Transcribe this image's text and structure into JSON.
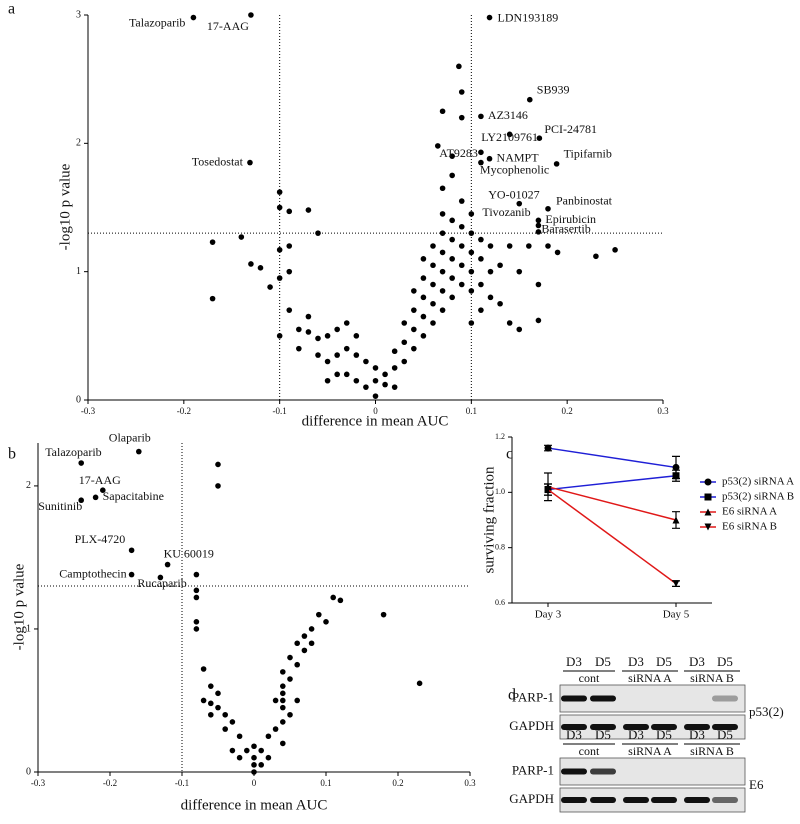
{
  "chart_data": [
    {
      "type": "scatter",
      "panel_label": "a",
      "xlabel": "difference in mean AUC",
      "ylabel": "-log10 p value",
      "color": "#000000",
      "xlim": [
        -0.3,
        0.3
      ],
      "xticks": [
        -0.3,
        -0.2,
        -0.1,
        0,
        0.1,
        0.2,
        0.3
      ],
      "ylim": [
        0,
        3
      ],
      "yticks": [
        0,
        1,
        2,
        3
      ],
      "vlines": [
        -0.1,
        0.1
      ],
      "hlines": [
        1.3
      ],
      "x": [
        -0.17,
        -0.17,
        -0.14,
        -0.13,
        -0.12,
        -0.11,
        -0.1,
        -0.1,
        -0.1,
        -0.1,
        -0.1,
        -0.09,
        -0.09,
        -0.09,
        -0.09,
        -0.08,
        -0.08,
        -0.07,
        -0.07,
        -0.06,
        -0.07,
        -0.06,
        -0.06,
        -0.05,
        -0.05,
        -0.05,
        -0.04,
        -0.04,
        -0.04,
        -0.03,
        -0.03,
        -0.03,
        -0.02,
        -0.02,
        -0.02,
        -0.01,
        -0.01,
        0,
        0,
        0,
        0.01,
        0.01,
        0.02,
        0.02,
        0.02,
        0.03,
        0.03,
        0.03,
        0.04,
        0.04,
        0.04,
        0.04,
        0.05,
        0.05,
        0.05,
        0.05,
        0.05,
        0.06,
        0.06,
        0.06,
        0.06,
        0.06,
        0.07,
        0.07,
        0.07,
        0.07,
        0.07,
        0.07,
        0.07,
        0.08,
        0.08,
        0.08,
        0.08,
        0.08,
        0.08,
        0.09,
        0.09,
        0.09,
        0.09,
        0.09,
        0.09,
        0.09,
        0.1,
        0.1,
        0.1,
        0.1,
        0.1,
        0.1,
        0.11,
        0.11,
        0.11,
        0.11,
        0.12,
        0.12,
        0.12,
        0.13,
        0.13,
        0.14,
        0.14,
        0.15,
        0.15,
        0.16,
        0.17,
        0.17,
        0.18,
        0.19,
        0.23,
        0.25,
        0.087,
        0.07,
        0.065,
        0.08
      ],
      "values": [
        0.79,
        1.23,
        1.27,
        1.06,
        1.03,
        0.88,
        0.5,
        0.95,
        1.17,
        1.62,
        1.5,
        1.47,
        1.2,
        1.0,
        0.7,
        0.55,
        0.4,
        1.48,
        0.65,
        1.3,
        0.53,
        0.48,
        0.35,
        0.5,
        0.3,
        0.15,
        0.55,
        0.35,
        0.2,
        0.6,
        0.4,
        0.2,
        0.5,
        0.35,
        0.15,
        0.3,
        0.1,
        0.25,
        0.15,
        0.03,
        0.12,
        0.2,
        0.1,
        0.25,
        0.38,
        0.3,
        0.45,
        0.6,
        0.4,
        0.55,
        0.7,
        0.85,
        0.5,
        0.65,
        0.8,
        0.95,
        1.1,
        0.6,
        0.75,
        0.9,
        1.05,
        1.2,
        0.7,
        0.85,
        1.0,
        1.15,
        1.3,
        1.45,
        1.65,
        0.8,
        0.95,
        1.1,
        1.25,
        1.4,
        1.75,
        0.9,
        1.05,
        1.2,
        1.35,
        1.55,
        2.2,
        2.4,
        0.85,
        1.0,
        1.15,
        1.3,
        1.45,
        0.6,
        0.7,
        0.9,
        1.1,
        1.25,
        0.8,
        1.0,
        1.2,
        1.05,
        0.75,
        1.2,
        0.6,
        0.55,
        1.0,
        1.2,
        0.9,
        0.62,
        1.2,
        1.15,
        1.12,
        1.17,
        2.6,
        2.25,
        1.98,
        1.9
      ],
      "annotations": [
        {
          "text": "Talazoparib",
          "x": -0.19,
          "y": 2.98
        },
        {
          "text": "17-AAG",
          "x": -0.13,
          "y": 3.0
        },
        {
          "text": "LDN193189",
          "x": 0.119,
          "y": 2.98
        },
        {
          "text": "SB939",
          "x": 0.161,
          "y": 2.34
        },
        {
          "text": "AZ3146",
          "x": 0.11,
          "y": 2.21
        },
        {
          "text": "PCI-24781",
          "x": 0.171,
          "y": 2.04
        },
        {
          "text": "LY2109761",
          "x": 0.14,
          "y": 2.07
        },
        {
          "text": "Tosedostat",
          "x": -0.131,
          "y": 1.85
        },
        {
          "text": "AT9283",
          "x": 0.11,
          "y": 1.93
        },
        {
          "text": "NAMPT",
          "x": 0.119,
          "y": 1.88
        },
        {
          "text": "Tipifarnib",
          "x": 0.189,
          "y": 1.84
        },
        {
          "text": "Mycophenolic",
          "x": 0.11,
          "y": 1.85
        },
        {
          "text": "YO-01027",
          "x": 0.15,
          "y": 1.53
        },
        {
          "text": "Panbinostat",
          "x": 0.18,
          "y": 1.49
        },
        {
          "text": "Tivozanib",
          "x": 0.17,
          "y": 1.4
        },
        {
          "text": "Epirubicin",
          "x": 0.17,
          "y": 1.36
        },
        {
          "text": "Barasertib",
          "x": 0.17,
          "y": 1.31
        }
      ]
    },
    {
      "type": "scatter",
      "panel_label": "b",
      "xlabel": "difference in mean AUC",
      "ylabel": "-log10 p value",
      "color": "#000000",
      "xlim": [
        -0.3,
        0.3
      ],
      "xticks": [
        -0.3,
        -0.2,
        -0.1,
        0,
        0.1,
        0.2,
        0.3
      ],
      "ylim": [
        0,
        2.3
      ],
      "yticks": [
        0,
        1,
        2
      ],
      "vlines": [
        -0.1
      ],
      "hlines": [
        1.3
      ],
      "x": [
        -0.08,
        -0.08,
        -0.08,
        -0.05,
        -0.05,
        -0.08,
        -0.08,
        -0.07,
        -0.07,
        -0.06,
        -0.06,
        -0.05,
        -0.05,
        -0.04,
        -0.04,
        -0.03,
        -0.03,
        -0.02,
        -0.02,
        -0.01,
        0,
        0,
        0,
        0,
        0.01,
        0.01,
        0.02,
        0.02,
        0.03,
        0.04,
        0.04,
        0.04,
        0.04,
        0.04,
        0.04,
        0.04,
        0.05,
        0.05,
        0.06,
        0.06,
        0.07,
        0.07,
        0.08,
        0.08,
        0.09,
        0.1,
        0.11,
        0.12,
        0.18,
        0.23,
        -0.06,
        0.05,
        0.06,
        0.03
      ],
      "values": [
        1.38,
        1.27,
        1.22,
        2.15,
        2.0,
        1.05,
        1.0,
        0.72,
        0.5,
        0.6,
        0.48,
        0.45,
        0.55,
        0.4,
        0.3,
        0.35,
        0.15,
        0.25,
        0.1,
        0.15,
        0.18,
        0.1,
        0.05,
        0,
        0.05,
        0.15,
        0.1,
        0.25,
        0.3,
        0.35,
        0.5,
        0.55,
        0.45,
        0.6,
        0.7,
        0.2,
        0.65,
        0.8,
        0.75,
        0.9,
        0.95,
        0.85,
        1.0,
        0.9,
        1.1,
        1.05,
        1.22,
        1.2,
        1.1,
        0.62,
        0.4,
        0.4,
        0.5,
        0.5
      ],
      "annotations": [
        {
          "text": "Olaparib",
          "x": -0.16,
          "y": 2.24
        },
        {
          "text": "Talazoparib",
          "x": -0.24,
          "y": 2.16
        },
        {
          "text": "17-AAG",
          "x": -0.21,
          "y": 1.97
        },
        {
          "text": "Sapacitabine",
          "x": -0.22,
          "y": 1.92
        },
        {
          "text": "Sunitinib",
          "x": -0.24,
          "y": 1.9
        },
        {
          "text": "PLX-4720",
          "x": -0.17,
          "y": 1.55
        },
        {
          "text": "Camptothecin",
          "x": -0.17,
          "y": 1.38
        },
        {
          "text": "Rucaparib",
          "x": -0.13,
          "y": 1.36
        },
        {
          "text": "KU 60019",
          "x": -0.12,
          "y": 1.45
        }
      ]
    },
    {
      "type": "line",
      "panel_label": "c",
      "ylabel": "surviving fraction",
      "categories": [
        "Day 3",
        "Day 5"
      ],
      "ylim": [
        0.6,
        1.2
      ],
      "yticks": [
        {
          "value": 0.6,
          "label": "0.6"
        },
        {
          "value": 0.8,
          "label": "0.8"
        },
        {
          "value": 1,
          "label": "1.0"
        },
        {
          "value": 1.2,
          "label": "1.2"
        }
      ],
      "series": [
        {
          "name": "p53(2) siRNA A",
          "color": "#1f1fd6",
          "marker": "circle",
          "values": [
            1.16,
            1.09
          ],
          "errors": [
            0.01,
            0.04
          ]
        },
        {
          "name": "p53(2) siRNA B",
          "color": "#1f1fd6",
          "marker": "square",
          "values": [
            1.01,
            1.06
          ],
          "errors": [
            0.02,
            0.02
          ]
        },
        {
          "name": "E6 siRNA A",
          "color": "#e01818",
          "marker": "triangle",
          "values": [
            1.02,
            0.9
          ],
          "errors": [
            0.05,
            0.03
          ]
        },
        {
          "name": "E6 siRNA B",
          "color": "#e01818",
          "marker": "triangle-down",
          "values": [
            1.01,
            0.67
          ],
          "errors": [
            0.02,
            0.01
          ]
        }
      ]
    }
  ],
  "blot": {
    "panel_label": "d",
    "panels": [
      {
        "lanes": [
          "D3",
          "D5",
          "D3",
          "D5",
          "D3",
          "D5"
        ],
        "groups": [
          "cont",
          "siRNA A",
          "siRNA B"
        ],
        "rows": [
          "PARP-1",
          "GAPDH"
        ],
        "condition": "p53(2)"
      },
      {
        "lanes": [
          "D3",
          "D5",
          "D3",
          "D5",
          "D3",
          "D5"
        ],
        "groups": [
          "cont",
          "siRNA A",
          "siRNA B"
        ],
        "rows": [
          "PARP-1",
          "GAPDH"
        ],
        "condition": "E6"
      }
    ]
  }
}
